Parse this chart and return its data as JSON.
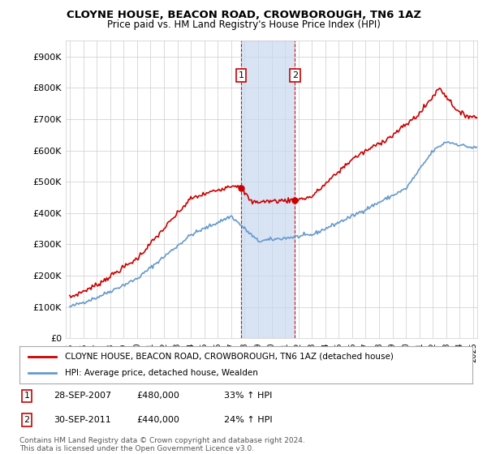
{
  "title": "CLOYNE HOUSE, BEACON ROAD, CROWBOROUGH, TN6 1AZ",
  "subtitle": "Price paid vs. HM Land Registry's House Price Index (HPI)",
  "red_label": "CLOYNE HOUSE, BEACON ROAD, CROWBOROUGH, TN6 1AZ (detached house)",
  "blue_label": "HPI: Average price, detached house, Wealden",
  "annotation1": {
    "num": "1",
    "date": "28-SEP-2007",
    "price": "£480,000",
    "hpi": "33% ↑ HPI"
  },
  "annotation2": {
    "num": "2",
    "date": "30-SEP-2011",
    "price": "£440,000",
    "hpi": "24% ↑ HPI"
  },
  "footnote1": "Contains HM Land Registry data © Crown copyright and database right 2024.",
  "footnote2": "This data is licensed under the Open Government Licence v3.0.",
  "ylim": [
    0,
    950000
  ],
  "yticks": [
    0,
    100000,
    200000,
    300000,
    400000,
    500000,
    600000,
    700000,
    800000,
    900000
  ],
  "ytick_labels": [
    "£0",
    "£100K",
    "£200K",
    "£300K",
    "£400K",
    "£500K",
    "£600K",
    "£700K",
    "£800K",
    "£900K"
  ],
  "red_color": "#cc0000",
  "blue_color": "#6699cc",
  "shading_color": "#c8d8f0",
  "annotation_box_color": "#cc0000",
  "grid_color": "#cccccc",
  "background_color": "#ffffff",
  "sale1_x": 2007.75,
  "sale2_x": 2011.75,
  "sale1_price": 480000,
  "sale2_price": 440000,
  "xlim_left": 1994.7,
  "xlim_right": 2025.3
}
